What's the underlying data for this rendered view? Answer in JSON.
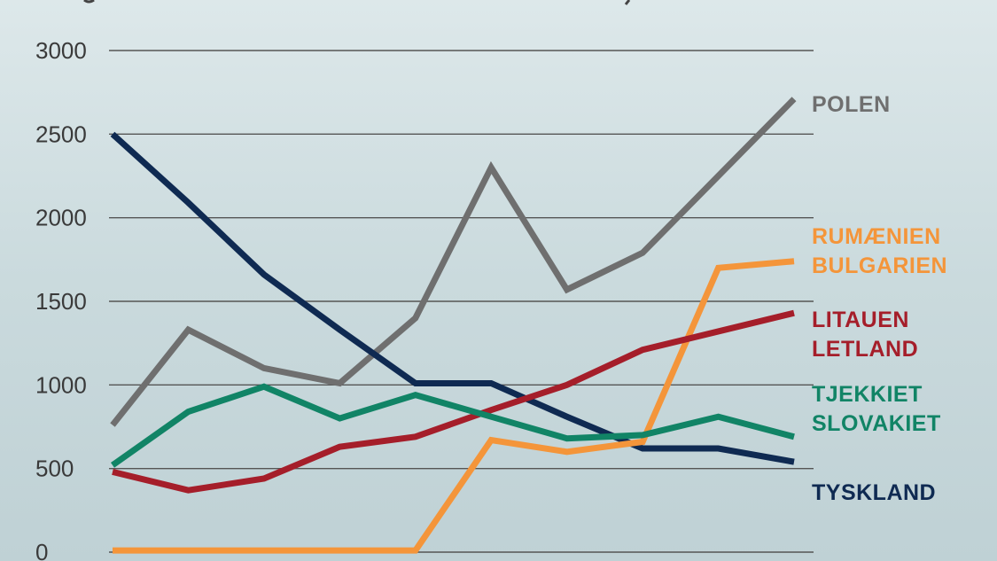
{
  "chart_data": {
    "type": "line",
    "title": "",
    "xlabel": "",
    "ylabel": "",
    "ylim": [
      0,
      3000
    ],
    "grid": true,
    "y_ticks": [
      "0",
      "500",
      "1000",
      "1500",
      "2000",
      "2500",
      "3000"
    ],
    "x": [
      1,
      2,
      3,
      4,
      5,
      6,
      7,
      8,
      9,
      10
    ],
    "series": [
      {
        "id": "polen",
        "labels": [
          "POLEN"
        ],
        "color": "#6f6f6f",
        "values": [
          760,
          1330,
          1100,
          1010,
          1400,
          2300,
          1570,
          1790,
          2250,
          2710
        ]
      },
      {
        "id": "tyskland",
        "labels": [
          "TYSKLAND"
        ],
        "color": "#0f2a52",
        "values": [
          2500,
          2090,
          1660,
          1330,
          1010,
          1010,
          810,
          620,
          620,
          540
        ]
      },
      {
        "id": "rumaenien-bulgarien",
        "labels": [
          "RUMÆNIEN",
          "BULGARIEN"
        ],
        "color": "#f4953a",
        "values": [
          10,
          10,
          10,
          10,
          10,
          670,
          600,
          660,
          1700,
          1740
        ]
      },
      {
        "id": "litauen-letland",
        "labels": [
          "LITAUEN",
          "LETLAND"
        ],
        "color": "#a51e2a",
        "values": [
          480,
          370,
          440,
          630,
          690,
          850,
          1000,
          1210,
          1320,
          1430
        ]
      },
      {
        "id": "tjekkiet-slovakiet",
        "labels": [
          "TJEKKIET",
          "SLOVAKIET"
        ],
        "color": "#118466",
        "values": [
          520,
          840,
          990,
          800,
          940,
          810,
          680,
          700,
          810,
          690
        ]
      }
    ]
  }
}
